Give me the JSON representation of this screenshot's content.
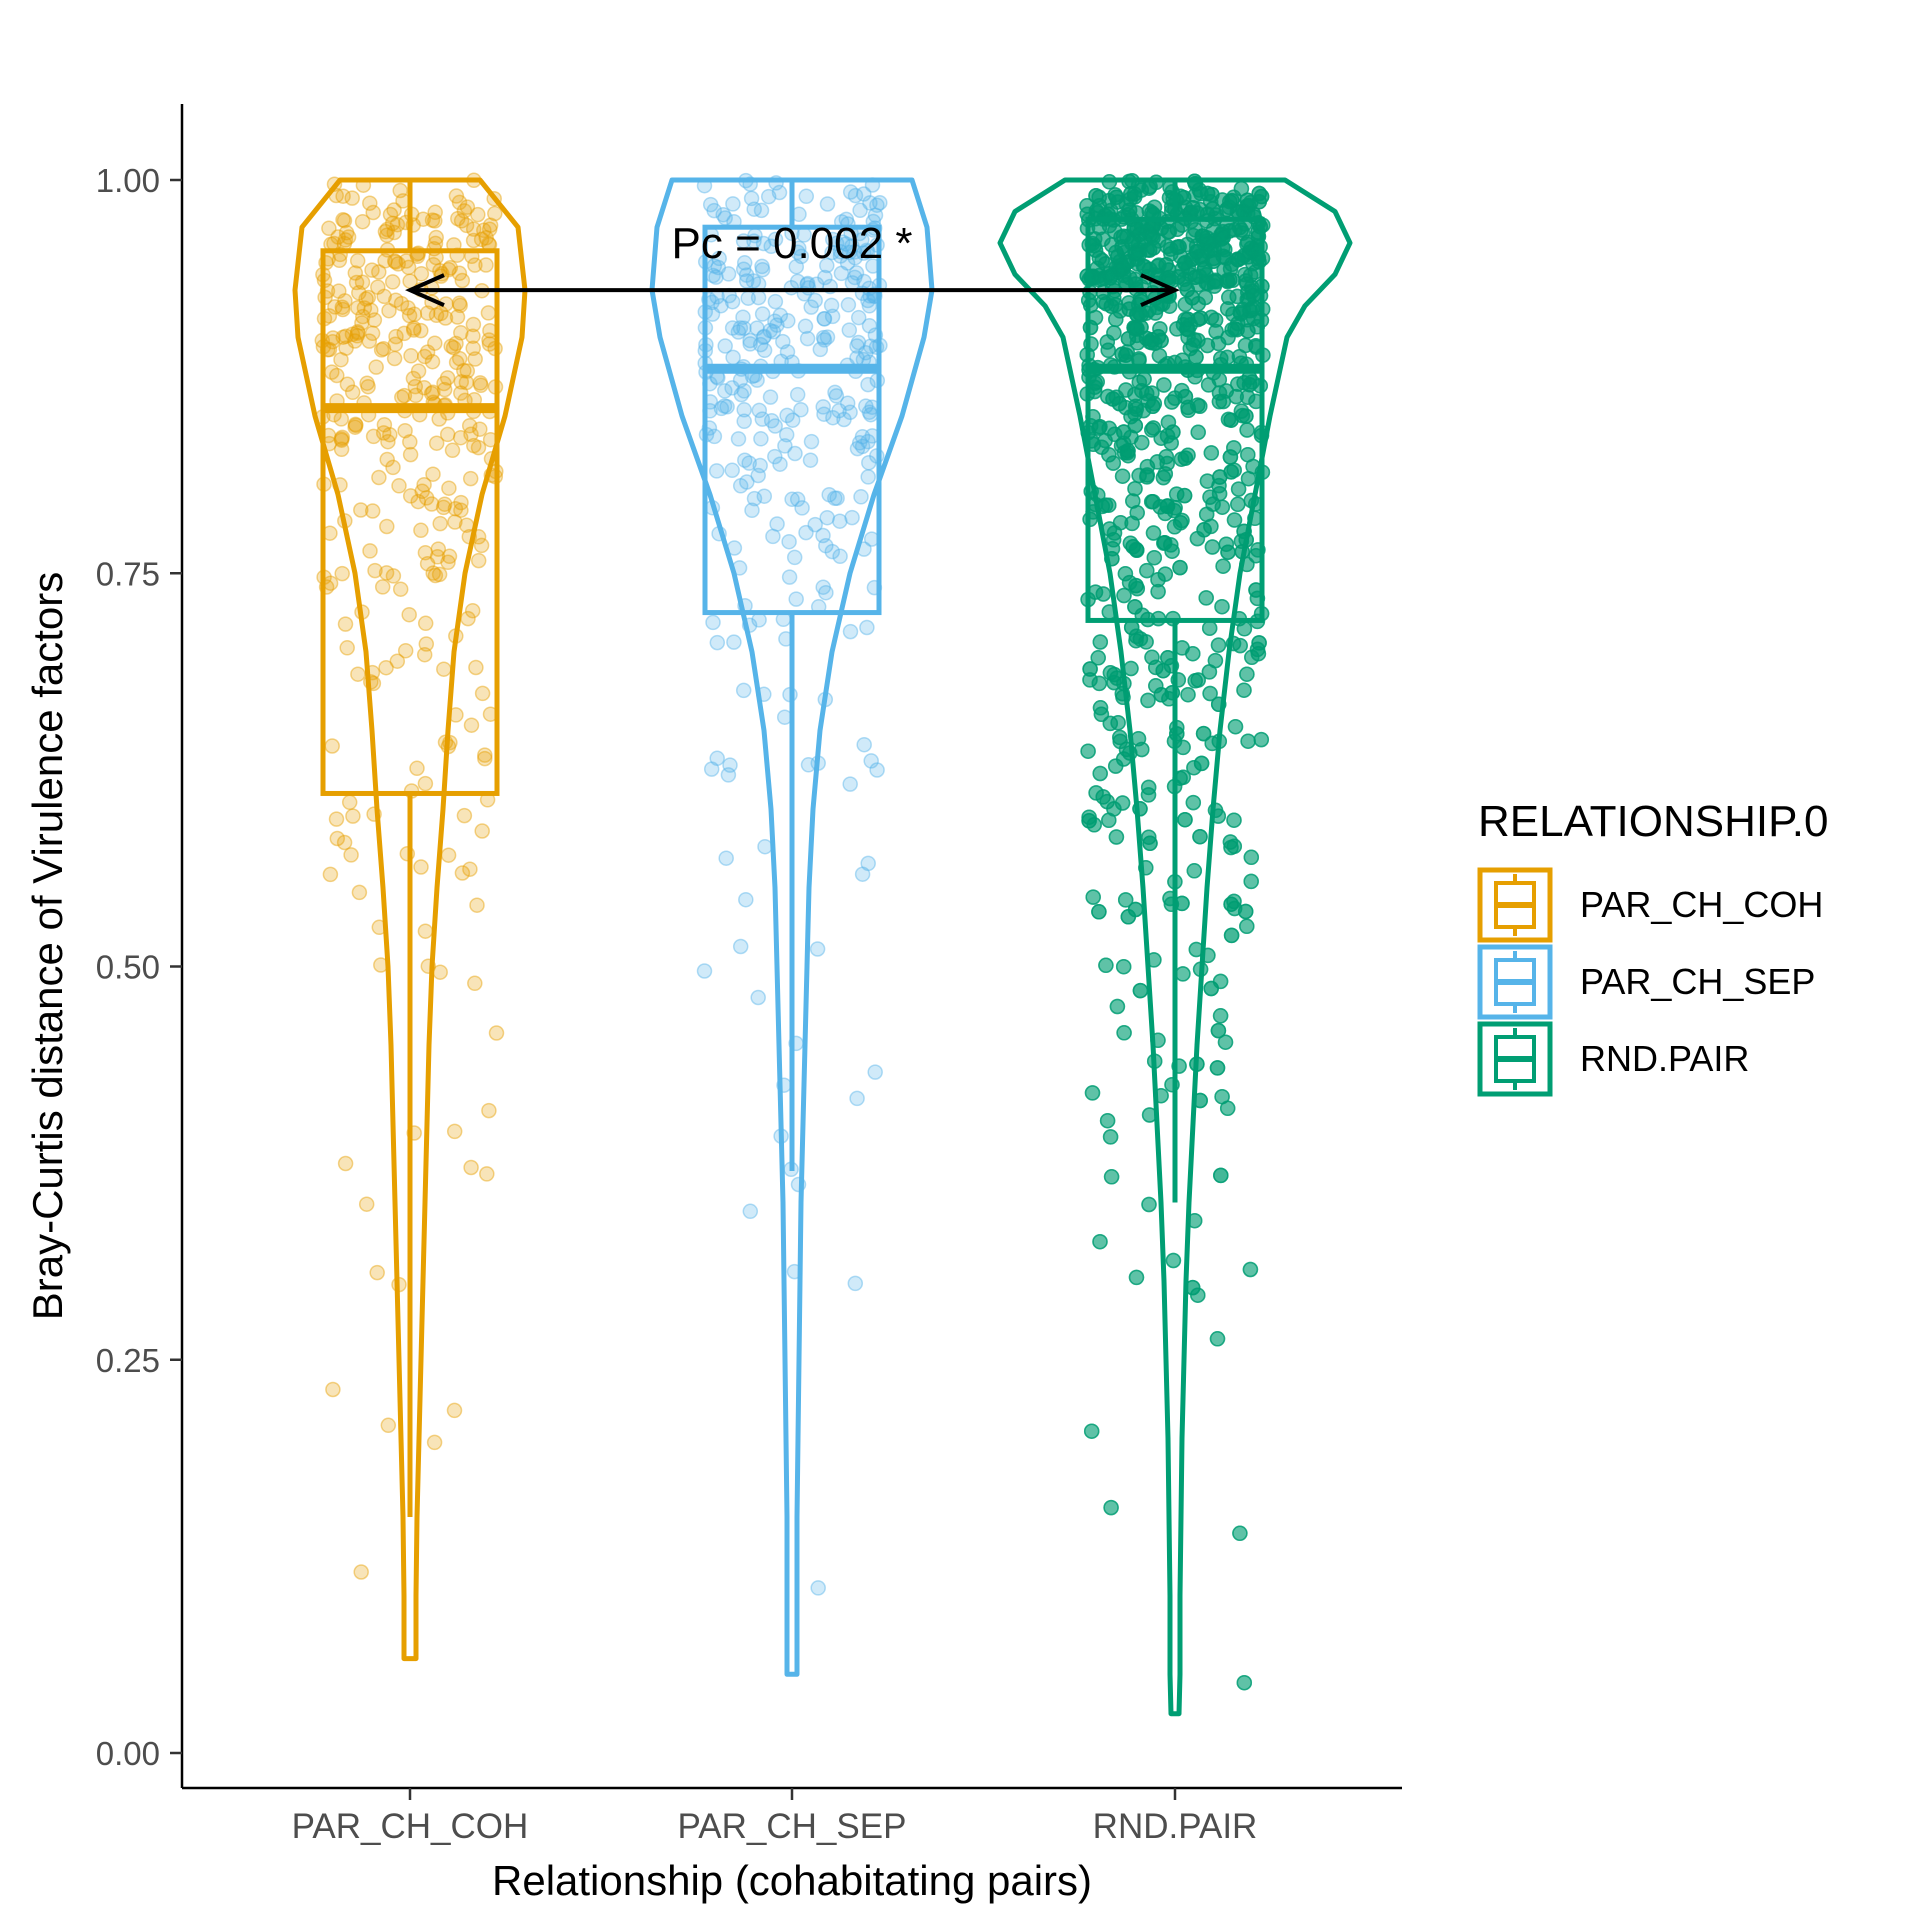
{
  "chart_data": {
    "type": "violin-box-jitter",
    "xlabel": "Relationship (cohabitating pairs)",
    "ylabel": "Bray-Curtis distance of Virulence factors",
    "ylim": [
      0,
      1.05
    ],
    "yticks": [
      "0.00",
      "0.25",
      "0.50",
      "0.75",
      "1.00"
    ],
    "categories": [
      "PAR_CH_COH",
      "PAR_CH_SEP",
      "RND.PAIR"
    ],
    "legend": {
      "title": "RELATIONSHIP.0",
      "placement": "right",
      "items": [
        "PAR_CH_COH",
        "PAR_CH_SEP",
        "RND.PAIR"
      ]
    },
    "series": [
      {
        "category": "PAR_CH_COH",
        "color": "#E69F00",
        "box": {
          "q1": 0.61,
          "median": 0.855,
          "q3": 0.955,
          "whisker_low": 0.15,
          "whisker_high": 1.0
        },
        "violin": {
          "min": 0.06,
          "max": 1.0
        },
        "points": 380
      },
      {
        "category": "PAR_CH_SEP",
        "color": "#56B4E9",
        "box": {
          "q1": 0.725,
          "median": 0.88,
          "q3": 0.97,
          "whisker_low": 0.37,
          "whisker_high": 1.0
        },
        "violin": {
          "min": 0.05,
          "max": 1.0
        },
        "points": 330
      },
      {
        "category": "RND.PAIR",
        "color": "#009E73",
        "box": {
          "q1": 0.72,
          "median": 0.88,
          "q3": 0.975,
          "whisker_low": 0.35,
          "whisker_high": 1.0
        },
        "violin": {
          "min": 0.025,
          "max": 1.0
        },
        "points": 2600
      }
    ],
    "annotation": {
      "text": "Pc = 0.002 *",
      "from": "PAR_CH_COH",
      "to": "RND.PAIR",
      "y": 0.93
    }
  }
}
